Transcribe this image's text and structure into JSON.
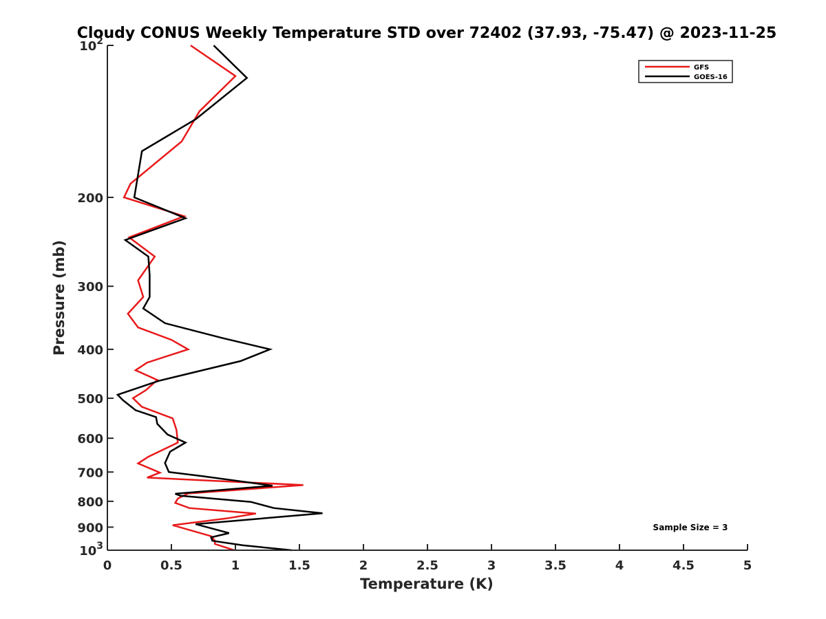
{
  "chart_data": {
    "type": "line",
    "title": "Cloudy CONUS Weekly Temperature STD over 72402 (37.93, -75.47) @ 2023-11-25",
    "xlabel": "Temperature (K)",
    "ylabel": "Pressure (mb)",
    "xlim": [
      0,
      5
    ],
    "ylim": [
      100,
      1000
    ],
    "y_scale": "log",
    "y_reversed": true,
    "grid": false,
    "legend_position": "top-right",
    "x_ticks": [
      "0",
      "0.5",
      "1",
      "1.5",
      "2",
      "2.5",
      "3",
      "3.5",
      "4",
      "4.5",
      "5"
    ],
    "x_tick_values": [
      0,
      0.5,
      1,
      1.5,
      2,
      2.5,
      3,
      3.5,
      4,
      4.5,
      5
    ],
    "y_ticks": [
      {
        "value": 100,
        "base": "10",
        "exp": "2"
      },
      {
        "value": 200,
        "label": "200"
      },
      {
        "value": 300,
        "label": "300"
      },
      {
        "value": 400,
        "label": "400"
      },
      {
        "value": 500,
        "label": "500"
      },
      {
        "value": 600,
        "label": "600"
      },
      {
        "value": 700,
        "label": "700"
      },
      {
        "value": 800,
        "label": "800"
      },
      {
        "value": 900,
        "label": "900"
      },
      {
        "value": 1000,
        "base": "10",
        "exp": "3"
      }
    ],
    "series": [
      {
        "name": "GFS",
        "color": "#e8191a",
        "points": [
          [
            0.65,
            100
          ],
          [
            1.0,
            115
          ],
          [
            0.72,
            135
          ],
          [
            0.58,
            155
          ],
          [
            0.18,
            188
          ],
          [
            0.13,
            200
          ],
          [
            0.6,
            218
          ],
          [
            0.17,
            240
          ],
          [
            0.37,
            262
          ],
          [
            0.24,
            292
          ],
          [
            0.28,
            315
          ],
          [
            0.16,
            340
          ],
          [
            0.24,
            362
          ],
          [
            0.5,
            383
          ],
          [
            0.63,
            400
          ],
          [
            0.31,
            425
          ],
          [
            0.22,
            440
          ],
          [
            0.39,
            460
          ],
          [
            0.3,
            482
          ],
          [
            0.2,
            500
          ],
          [
            0.27,
            520
          ],
          [
            0.51,
            548
          ],
          [
            0.54,
            578
          ],
          [
            0.55,
            612
          ],
          [
            0.32,
            653
          ],
          [
            0.24,
            673
          ],
          [
            0.41,
            702
          ],
          [
            0.31,
            718
          ],
          [
            1.53,
            743
          ],
          [
            0.63,
            772
          ],
          [
            0.55,
            790
          ],
          [
            0.53,
            806
          ],
          [
            0.64,
            825
          ],
          [
            1.16,
            846
          ],
          [
            0.93,
            865
          ],
          [
            0.51,
            892
          ],
          [
            0.81,
            938
          ],
          [
            0.84,
            958
          ],
          [
            0.84,
            972
          ],
          [
            0.99,
            1000
          ]
        ]
      },
      {
        "name": "GOES-16",
        "color": "#000000",
        "points": [
          [
            0.83,
            100
          ],
          [
            1.09,
            116
          ],
          [
            0.69,
            140
          ],
          [
            0.27,
            162
          ],
          [
            0.21,
            200
          ],
          [
            0.61,
            220
          ],
          [
            0.14,
            243
          ],
          [
            0.32,
            262
          ],
          [
            0.33,
            285
          ],
          [
            0.33,
            315
          ],
          [
            0.28,
            332
          ],
          [
            0.45,
            355
          ],
          [
            0.9,
            380
          ],
          [
            1.27,
            400
          ],
          [
            1.04,
            422
          ],
          [
            0.4,
            462
          ],
          [
            0.08,
            492
          ],
          [
            0.12,
            504
          ],
          [
            0.22,
            528
          ],
          [
            0.38,
            545
          ],
          [
            0.39,
            562
          ],
          [
            0.47,
            590
          ],
          [
            0.61,
            612
          ],
          [
            0.49,
            638
          ],
          [
            0.45,
            672
          ],
          [
            0.48,
            700
          ],
          [
            0.74,
            713
          ],
          [
            1.29,
            745
          ],
          [
            0.53,
            773
          ],
          [
            0.57,
            780
          ],
          [
            1.12,
            802
          ],
          [
            1.3,
            825
          ],
          [
            1.68,
            845
          ],
          [
            0.69,
            888
          ],
          [
            0.95,
            925
          ],
          [
            0.81,
            943
          ],
          [
            0.82,
            958
          ],
          [
            1.06,
            978
          ],
          [
            1.44,
            1000
          ]
        ]
      }
    ],
    "annotations": [
      "Sample Size = 3"
    ]
  }
}
